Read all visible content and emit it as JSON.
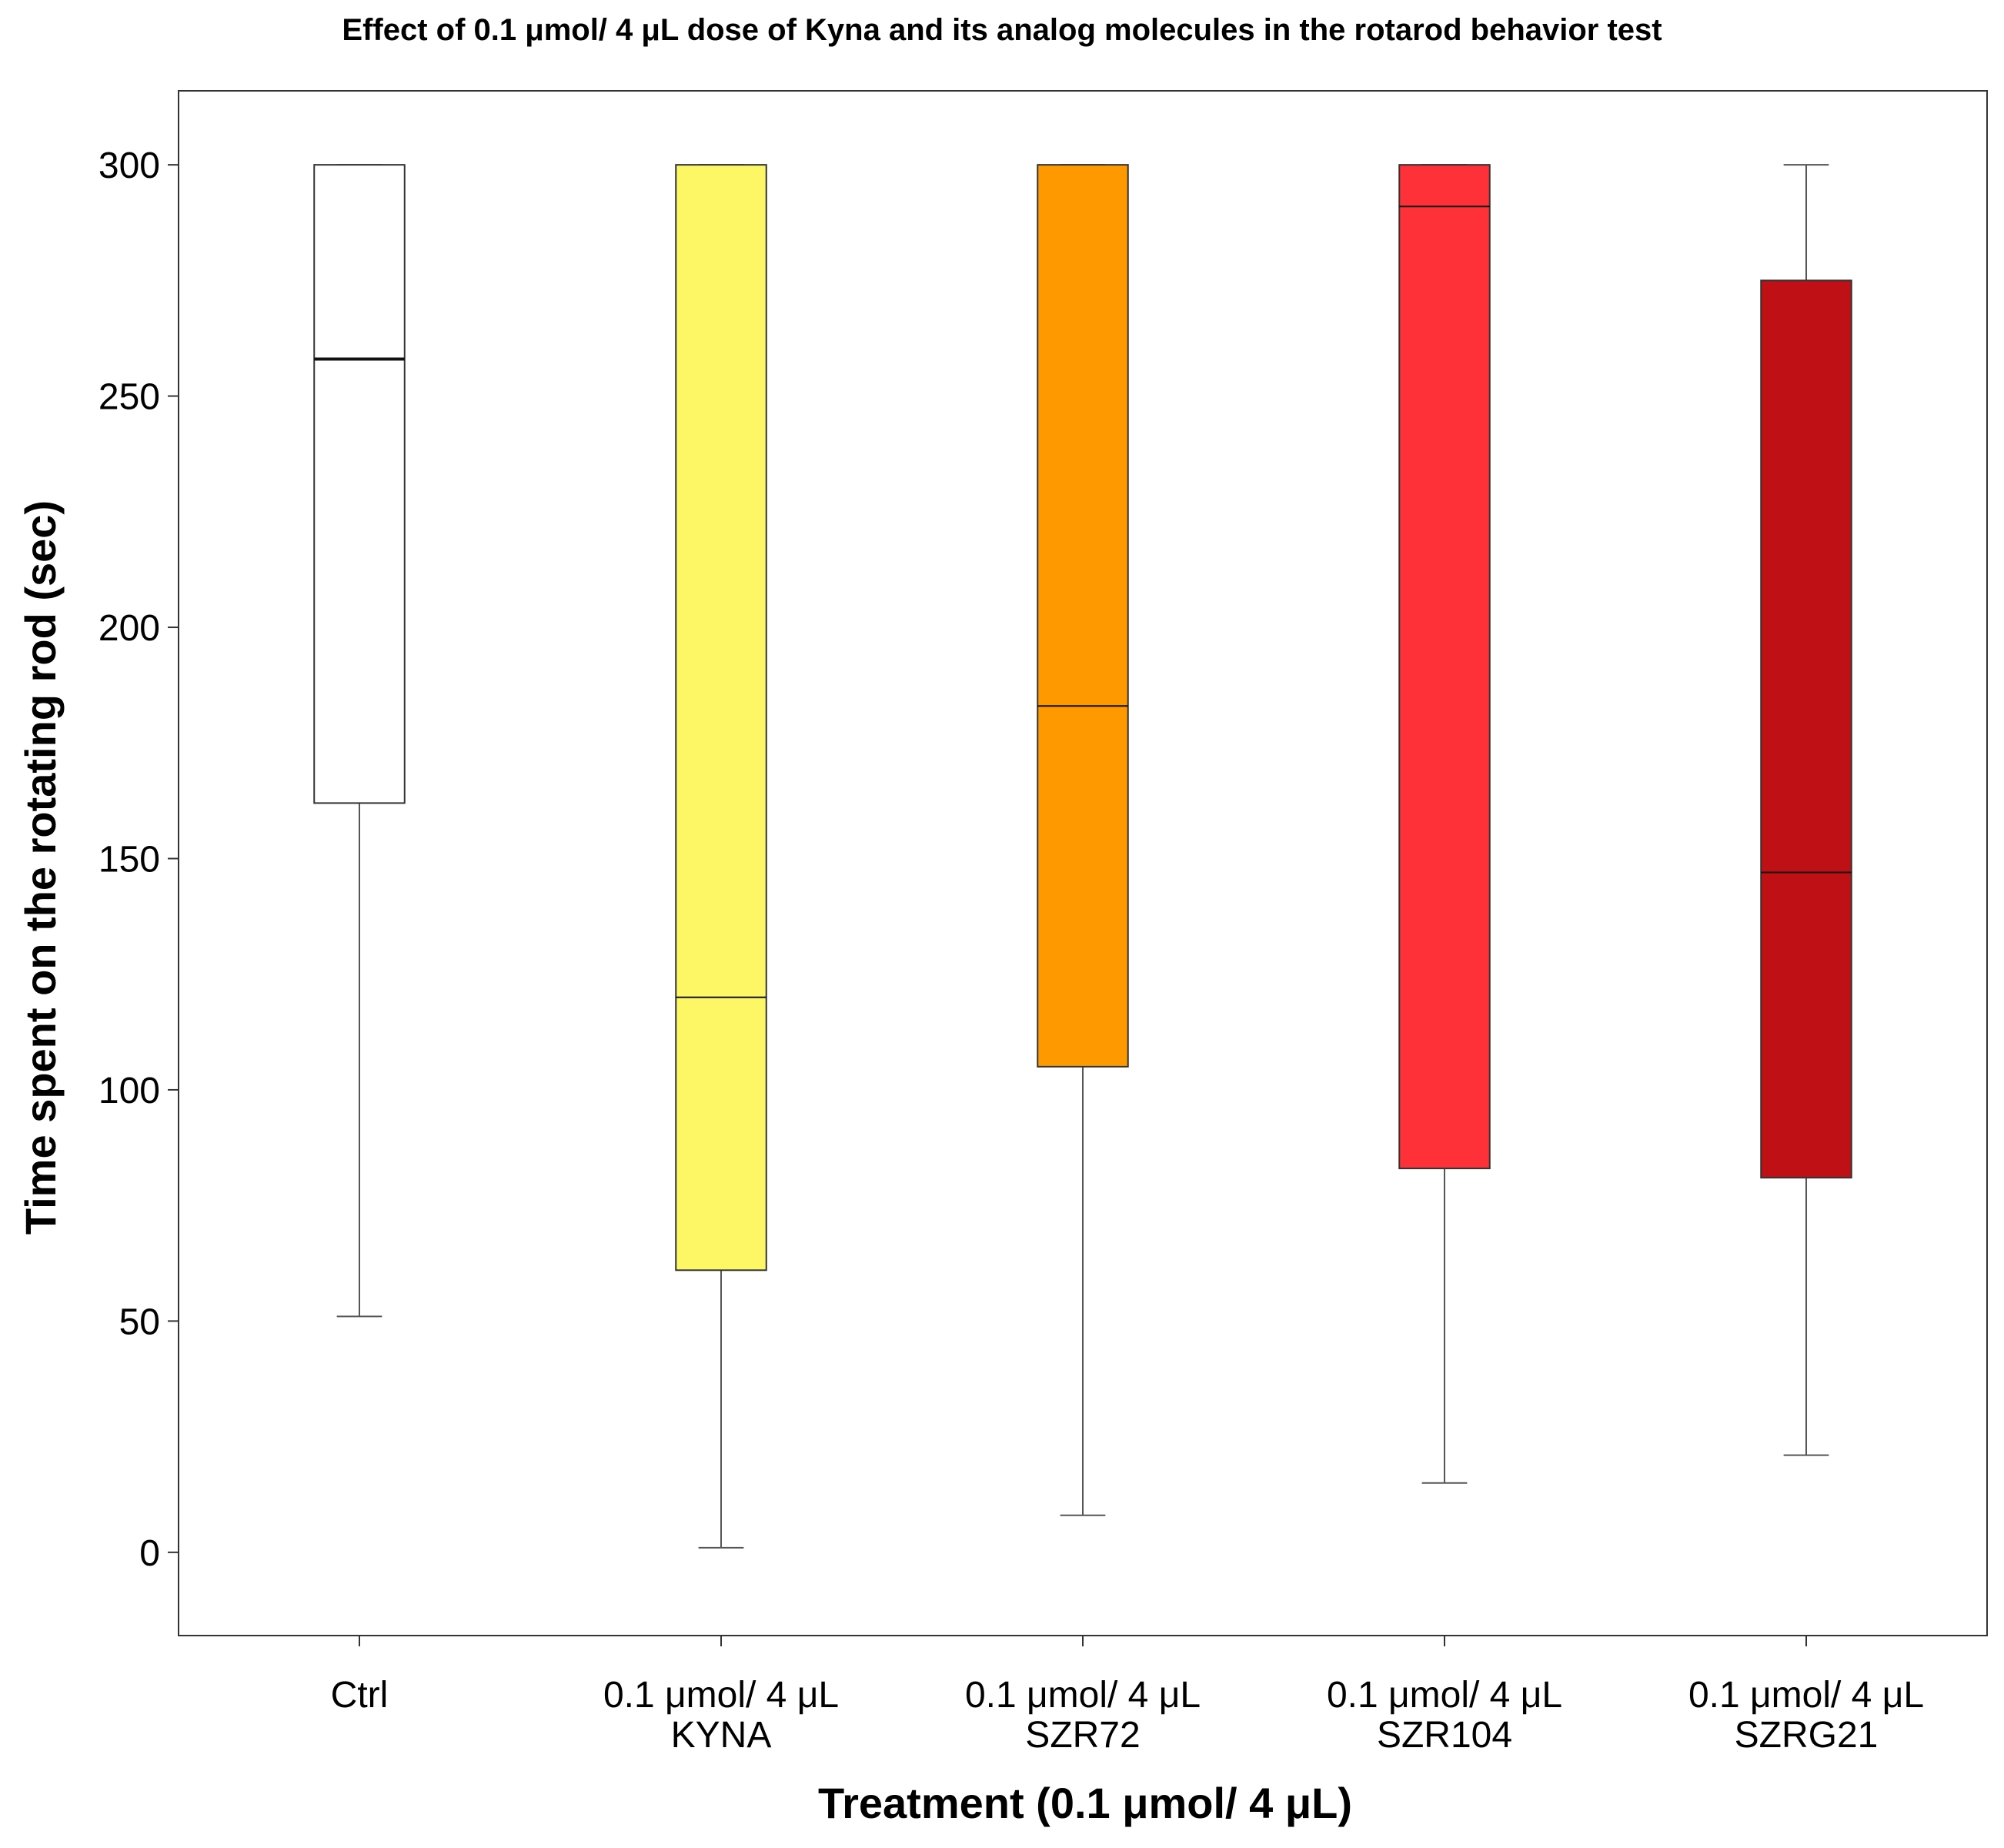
{
  "chart_data": {
    "type": "boxplot",
    "title": "Effect of 0.1 μmol/ 4 μL dose of Kyna and its analog molecules in the rotarod behavior test",
    "xlabel": "Treatment (0.1 μmol/ 4 μL)",
    "ylabel": "Time spent on the rotating rod (sec)",
    "ylim": [
      -18,
      316
    ],
    "yticks": [
      0,
      50,
      100,
      150,
      200,
      250,
      300
    ],
    "grid": false,
    "legend": "none",
    "categories": [
      {
        "line1": "Ctrl",
        "line2": ""
      },
      {
        "line1": "0.1 μmol/ 4 μL",
        "line2": "KYNA"
      },
      {
        "line1": "0.1 μmol/ 4 μL",
        "line2": "SZR72"
      },
      {
        "line1": "0.1 μmol/ 4 μL",
        "line2": "SZR104"
      },
      {
        "line1": "0.1 μmol/ 4 μL",
        "line2": "SZRG21"
      }
    ],
    "boxes": [
      {
        "min": 51,
        "q1": 162,
        "median": 258,
        "q3": 300,
        "max": 300,
        "color": "#ffffff"
      },
      {
        "min": 1,
        "q1": 61,
        "median": 120,
        "q3": 300,
        "max": 300,
        "color": "#fdf766"
      },
      {
        "min": 8,
        "q1": 105,
        "median": 183,
        "q3": 300,
        "max": 300,
        "color": "#fe9900"
      },
      {
        "min": 15,
        "q1": 83,
        "median": 291,
        "q3": 300,
        "max": 300,
        "color": "#fe3038"
      },
      {
        "min": 21,
        "q1": 81,
        "median": 147,
        "q3": 275,
        "max": 300,
        "color": "#bf1115"
      }
    ]
  }
}
